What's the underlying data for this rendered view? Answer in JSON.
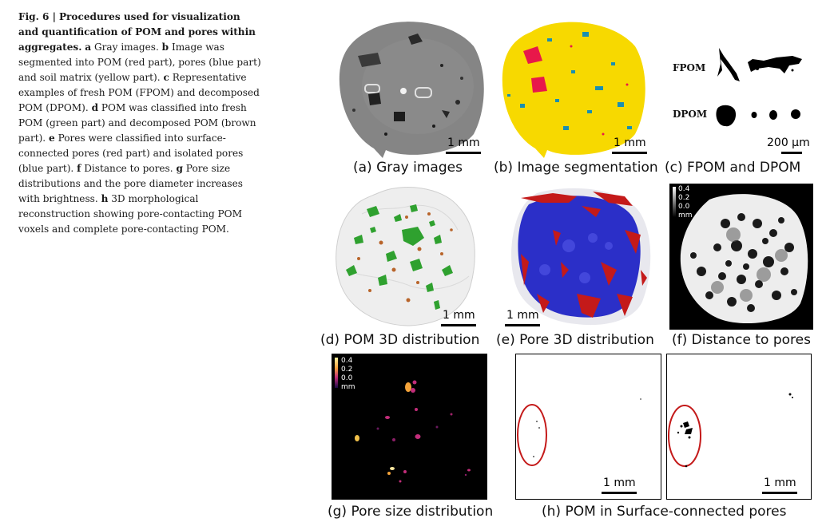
{
  "caption": {
    "fig_label": "Fig. 6 |",
    "title": "Procedures used for visualization and quantification of POM and pores within aggregates.",
    "parts": [
      {
        "letter": "a",
        "text": "Gray images."
      },
      {
        "letter": "b",
        "text": "Image was segmented into POM (red part), pores (blue part) and soil matrix (yellow part)."
      },
      {
        "letter": "c",
        "text": "Representative examples of fresh POM (FPOM) and decomposed POM (DPOM)."
      },
      {
        "letter": "d",
        "text": "POM was classified into fresh POM (green part) and decomposed POM (brown part)."
      },
      {
        "letter": "e",
        "text": "Pores were classified into surface-connected pores (red part) and isolated pores (blue part)."
      },
      {
        "letter": "f",
        "text": "Distance to pores."
      },
      {
        "letter": "g",
        "text": "Pore size distributions and the pore diameter increases with brightness."
      },
      {
        "letter": "h",
        "text": "3D morphological reconstruction showing pore-contacting POM voxels and complete pore-contacting POM."
      }
    ]
  },
  "panels": {
    "a": {
      "label": "(a) Gray images",
      "scale": "1 mm"
    },
    "b": {
      "label": "(b) Image segmentation",
      "scale": "1 mm"
    },
    "c": {
      "label": "(c) FPOM and DPOM",
      "fpom": "FPOM",
      "dpom": "DPOM",
      "scale": "200 μm"
    },
    "d": {
      "label": "(d) POM 3D distribution",
      "scale": "1 mm"
    },
    "e": {
      "label": "(e) Pore 3D distribution",
      "scale": "1 mm"
    },
    "f": {
      "label": "(f) Distance to pores",
      "legend": [
        "0.4",
        "0.2",
        "0.0",
        "mm"
      ]
    },
    "g": {
      "label": "(g) Pore size distribution",
      "legend": [
        "0.4",
        "0.2",
        "0.0",
        "mm"
      ]
    },
    "h": {
      "label": "(h) POM in Surface-connected pores",
      "scale_left": "1 mm",
      "scale_right": "1 mm"
    }
  },
  "colors": {
    "gray_matrix": "#8a8a8a",
    "segment_yellow": "#f7d900",
    "pom_red": "#e8184a",
    "pore_blue": "#1a8fb0",
    "fresh_green": "#2fa12f",
    "decomposed_brown": "#b8642a",
    "pore3d_blue": "#2b2fc8",
    "pore3d_red": "#c41a1a",
    "circle_red": "#c41a1a"
  }
}
